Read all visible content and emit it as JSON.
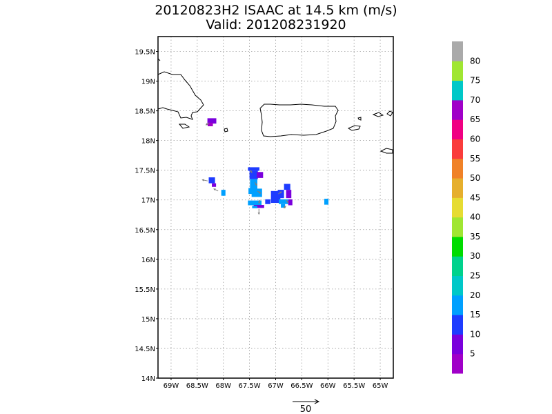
{
  "title": {
    "line1": "20120823H2 ISAAC at 14.5 km (m/s)",
    "line2": "Valid: 201208231920"
  },
  "colors": {
    "grid": "#999999",
    "coast": "#000000",
    "frame": "#000000",
    "vector": "#7f7f7f"
  },
  "map": {
    "lon_range": [
      -69.25,
      -64.75
    ],
    "lat_range": [
      14.0,
      19.75
    ],
    "lat_ticks": [
      {
        "value": 19.5,
        "label": "19.5N"
      },
      {
        "value": 19.0,
        "label": "19N"
      },
      {
        "value": 18.5,
        "label": "18.5N"
      },
      {
        "value": 18.0,
        "label": "18N"
      },
      {
        "value": 17.5,
        "label": "17.5N"
      },
      {
        "value": 17.0,
        "label": "17N"
      },
      {
        "value": 16.5,
        "label": "16.5N"
      },
      {
        "value": 16.0,
        "label": "16N"
      },
      {
        "value": 15.5,
        "label": "15.5N"
      },
      {
        "value": 15.0,
        "label": "15N"
      },
      {
        "value": 14.5,
        "label": "14.5N"
      },
      {
        "value": 14.0,
        "label": "14N"
      }
    ],
    "lon_ticks": [
      {
        "value": -69.0,
        "label": "69W"
      },
      {
        "value": -68.5,
        "label": "68.5W"
      },
      {
        "value": -68.0,
        "label": "68W"
      },
      {
        "value": -67.5,
        "label": "67.5W"
      },
      {
        "value": -67.0,
        "label": "67W"
      },
      {
        "value": -66.5,
        "label": "66.5W"
      },
      {
        "value": -66.0,
        "label": "66W"
      },
      {
        "value": -65.5,
        "label": "65.5W"
      },
      {
        "value": -65.0,
        "label": "65W"
      }
    ],
    "grid": true
  },
  "colorbar": {
    "colors": [
      "#a000c8",
      "#7a00dc",
      "#1e3cff",
      "#00a0ff",
      "#00c8c8",
      "#00d28c",
      "#00dc00",
      "#a0e632",
      "#e6dc32",
      "#e6af2d",
      "#f08228",
      "#fa3c3c",
      "#f00082",
      "#a000c8",
      "#00c8c8",
      "#a0e632",
      "#aaaaaa"
    ],
    "labels": [
      "5",
      "10",
      "15",
      "20",
      "25",
      "30",
      "35",
      "40",
      "45",
      "50",
      "55",
      "60",
      "65",
      "70",
      "75",
      "80"
    ]
  },
  "wind_cells": [
    {
      "lon": -68.22,
      "lat": 18.33,
      "w": 0.17,
      "h": 0.09,
      "speed": 9
    },
    {
      "lon": -68.25,
      "lat": 18.27,
      "w": 0.1,
      "h": 0.06,
      "speed": 4
    },
    {
      "lon": -68.22,
      "lat": 17.33,
      "w": 0.12,
      "h": 0.1,
      "speed": 13
    },
    {
      "lon": -68.18,
      "lat": 17.25,
      "w": 0.08,
      "h": 0.06,
      "speed": 8
    },
    {
      "lon": -68.0,
      "lat": 17.12,
      "w": 0.08,
      "h": 0.1,
      "speed": 18
    },
    {
      "lon": -67.42,
      "lat": 17.52,
      "w": 0.22,
      "h": 0.06,
      "speed": 13
    },
    {
      "lon": -67.42,
      "lat": 17.42,
      "w": 0.16,
      "h": 0.14,
      "speed": 14
    },
    {
      "lon": -67.3,
      "lat": 17.42,
      "w": 0.12,
      "h": 0.1,
      "speed": 9
    },
    {
      "lon": -67.42,
      "lat": 17.25,
      "w": 0.14,
      "h": 0.2,
      "speed": 16
    },
    {
      "lon": -67.36,
      "lat": 17.12,
      "w": 0.2,
      "h": 0.14,
      "speed": 18
    },
    {
      "lon": -67.48,
      "lat": 17.15,
      "w": 0.08,
      "h": 0.1,
      "speed": 15
    },
    {
      "lon": -67.4,
      "lat": 16.95,
      "w": 0.26,
      "h": 0.08,
      "speed": 17
    },
    {
      "lon": -67.32,
      "lat": 16.89,
      "w": 0.2,
      "h": 0.05,
      "speed": 8
    },
    {
      "lon": -67.4,
      "lat": 16.88,
      "w": 0.1,
      "h": 0.04,
      "speed": 19
    },
    {
      "lon": -67.15,
      "lat": 16.97,
      "w": 0.1,
      "h": 0.08,
      "speed": 12
    },
    {
      "lon": -67.0,
      "lat": 17.05,
      "w": 0.18,
      "h": 0.2,
      "speed": 13
    },
    {
      "lon": -66.9,
      "lat": 17.1,
      "w": 0.12,
      "h": 0.14,
      "speed": 12
    },
    {
      "lon": -66.78,
      "lat": 17.22,
      "w": 0.12,
      "h": 0.1,
      "speed": 13
    },
    {
      "lon": -66.75,
      "lat": 17.1,
      "w": 0.1,
      "h": 0.14,
      "speed": 9
    },
    {
      "lon": -66.85,
      "lat": 16.97,
      "w": 0.18,
      "h": 0.08,
      "speed": 17
    },
    {
      "lon": -66.86,
      "lat": 16.9,
      "w": 0.08,
      "h": 0.06,
      "speed": 19
    },
    {
      "lon": -66.72,
      "lat": 16.96,
      "w": 0.08,
      "h": 0.1,
      "speed": 6
    },
    {
      "lon": -66.03,
      "lat": 16.97,
      "w": 0.08,
      "h": 0.1,
      "speed": 18
    }
  ],
  "wind_vectors": [
    {
      "lon": -68.27,
      "lat": 18.3,
      "u": -6,
      "v": -4
    },
    {
      "lon": -68.3,
      "lat": 17.32,
      "u": -10,
      "v": 2
    },
    {
      "lon": -68.1,
      "lat": 17.15,
      "u": -8,
      "v": 4
    },
    {
      "lon": -67.45,
      "lat": 17.45,
      "u": -3,
      "v": 5
    },
    {
      "lon": -67.4,
      "lat": 17.3,
      "u": 4,
      "v": -6
    },
    {
      "lon": -67.35,
      "lat": 17.15,
      "u": 6,
      "v": -4
    },
    {
      "lon": -67.3,
      "lat": 17.0,
      "u": -2,
      "v": -6
    },
    {
      "lon": -67.32,
      "lat": 16.85,
      "u": 0,
      "v": -10
    },
    {
      "lon": -66.95,
      "lat": 17.1,
      "u": 6,
      "v": 4
    },
    {
      "lon": -66.8,
      "lat": 17.0,
      "u": 4,
      "v": -5
    },
    {
      "lon": -66.8,
      "lat": 16.9,
      "u": -4,
      "v": -4
    }
  ],
  "reference_vector": {
    "label": "50",
    "value": 50
  }
}
